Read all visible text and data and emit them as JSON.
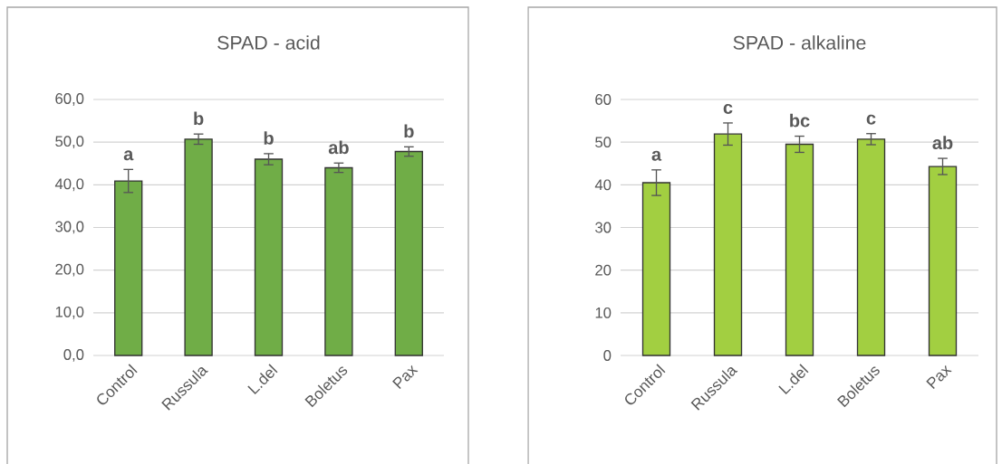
{
  "chart_data": [
    {
      "type": "bar",
      "title": "SPAD - acid",
      "categories": [
        "Control",
        "Russula",
        "L.del",
        "Boletus",
        "Pax"
      ],
      "values": [
        40.9,
        50.7,
        46.0,
        44.0,
        47.8
      ],
      "errors": [
        2.7,
        1.2,
        1.3,
        1.1,
        1.1
      ],
      "color": "#70ad47",
      "grid": "y",
      "ylim": [
        0,
        60
      ],
      "yticks": [
        {
          "value": 0,
          "label": "0,0"
        },
        {
          "value": 10,
          "label": "10,0"
        },
        {
          "value": 20,
          "label": "20,0"
        },
        {
          "value": 30,
          "label": "30,0"
        },
        {
          "value": 40,
          "label": "40,0"
        },
        {
          "value": 50,
          "label": "50,0"
        },
        {
          "value": 60,
          "label": "60,0"
        }
      ],
      "annotations": [
        "a",
        "b",
        "b",
        "ab",
        "b"
      ]
    },
    {
      "type": "bar",
      "title": "SPAD - alkaline",
      "categories": [
        "Control",
        "Russula",
        "L.del",
        "Boletus",
        "Pax"
      ],
      "values": [
        40.5,
        51.9,
        49.5,
        50.7,
        44.3
      ],
      "errors": [
        3.0,
        2.6,
        1.9,
        1.3,
        1.9
      ],
      "color": "#a2cf41",
      "grid": "y",
      "ylim": [
        0,
        60
      ],
      "yticks": [
        0,
        10,
        20,
        30,
        40,
        50,
        60
      ],
      "annotations": [
        "a",
        "c",
        "bc",
        "c",
        "ab"
      ]
    }
  ]
}
